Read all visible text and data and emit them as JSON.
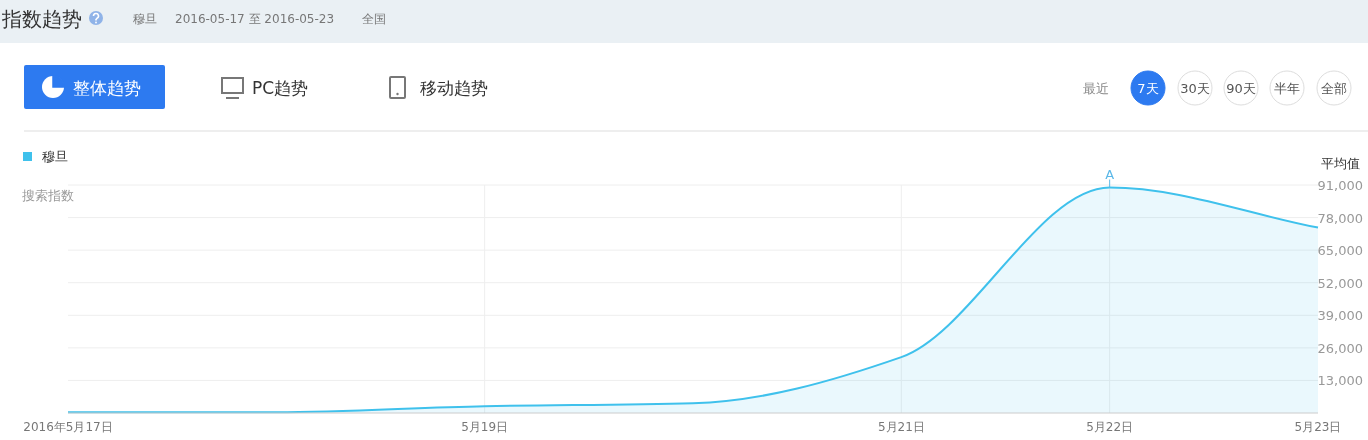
{
  "chart_data": {
    "type": "area",
    "title": "指数趋势",
    "ylabel": "搜索指数",
    "annotations": [
      "穆旦",
      "2016-05-17 至 2016-05-23",
      "全国",
      "整体趋势",
      "PC趋势",
      "移动趋势",
      "最近",
      "7天",
      "30天",
      "90天",
      "半年",
      "全部",
      "平均值",
      {
        "text": "A",
        "x": "2016-05-22",
        "y": 90000
      }
    ],
    "x": [
      "2016-05-17",
      "2016-05-18",
      "2016-05-19",
      "2016-05-20",
      "2016-05-21",
      "2016-05-22",
      "2016-05-23"
    ],
    "series": [
      {
        "name": "穆旦",
        "color": "#3fc1ec",
        "values": [
          300,
          300,
          2700,
          3900,
          22300,
          90000,
          74000
        ]
      }
    ],
    "xlim": [
      "2016-05-17",
      "2016-05-23"
    ],
    "xticks": [
      {
        "value": "2016-05-17",
        "label": "2016年5月17日"
      },
      {
        "value": "2016-05-19",
        "label": "5月19日"
      },
      {
        "value": "2016-05-21",
        "label": "5月21日"
      },
      {
        "value": "2016-05-22",
        "label": "5月22日"
      },
      {
        "value": "2016-05-23",
        "label": "5月23日"
      }
    ],
    "ylim": [
      0,
      91000
    ],
    "yticks": [
      {
        "value": 13000,
        "label": "13,000"
      },
      {
        "value": 26000,
        "label": "26,000"
      },
      {
        "value": 39000,
        "label": "39,000"
      },
      {
        "value": 52000,
        "label": "52,000"
      },
      {
        "value": 65000,
        "label": "65,000"
      },
      {
        "value": 78000,
        "label": "78,000"
      },
      {
        "value": 91000,
        "label": "91,000"
      }
    ],
    "grid": true,
    "legend": "top left"
  }
}
